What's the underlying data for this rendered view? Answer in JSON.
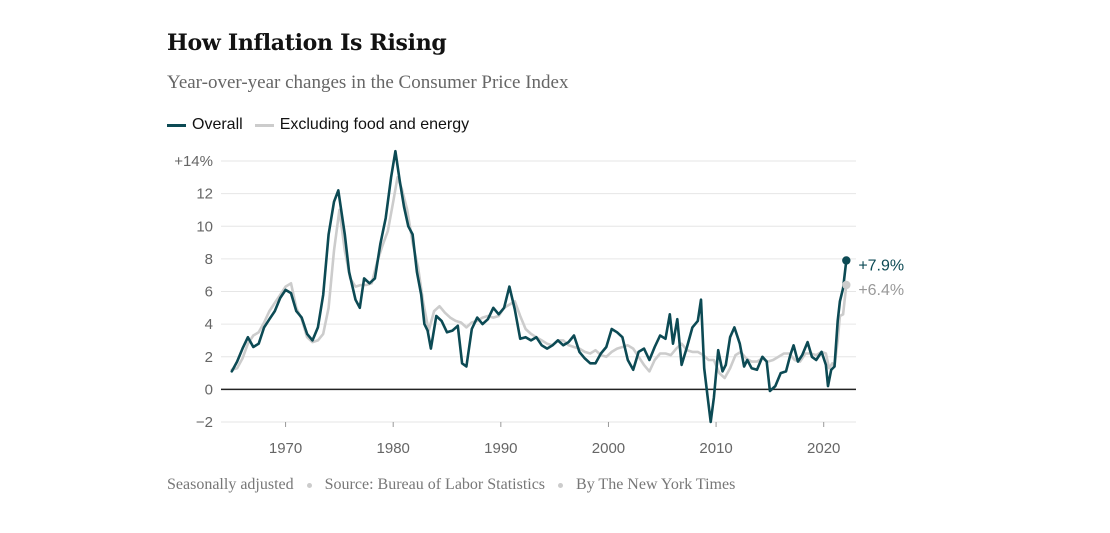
{
  "title": "How Inflation Is Rising",
  "subtitle": "Year-over-year changes in the Consumer Price Index",
  "legend": [
    {
      "label": "Overall",
      "color": "#0c4a54"
    },
    {
      "label": "Excluding food and energy",
      "color": "#cccccc"
    }
  ],
  "footer": {
    "note": "Seasonally adjusted",
    "source": "Source: Bureau of Labor Statistics",
    "byline": "By The New York Times"
  },
  "chart_data": {
    "type": "line",
    "xlabel": "",
    "ylabel": "",
    "xlim": [
      1964,
      2023
    ],
    "ylim": [
      -2,
      14
    ],
    "x_ticks": [
      1970,
      1980,
      1990,
      2000,
      2010,
      2020
    ],
    "y_ticks": [
      {
        "value": 14,
        "label": "+14%"
      },
      {
        "value": 12,
        "label": "12"
      },
      {
        "value": 10,
        "label": "10"
      },
      {
        "value": 8,
        "label": "8"
      },
      {
        "value": 6,
        "label": "6"
      },
      {
        "value": 4,
        "label": "4"
      },
      {
        "value": 2,
        "label": "2"
      },
      {
        "value": 0,
        "label": "0"
      },
      {
        "value": -2,
        "label": "−2"
      }
    ],
    "grid": true,
    "legend_position": "top-left",
    "series": [
      {
        "name": "Overall",
        "color": "#0c4a54",
        "end_label": "+7.9%",
        "points": [
          [
            1965.0,
            1.1
          ],
          [
            1965.5,
            1.7
          ],
          [
            1966.0,
            2.5
          ],
          [
            1966.5,
            3.2
          ],
          [
            1967.0,
            2.6
          ],
          [
            1967.5,
            2.8
          ],
          [
            1968.0,
            3.8
          ],
          [
            1968.5,
            4.3
          ],
          [
            1969.0,
            4.8
          ],
          [
            1969.5,
            5.6
          ],
          [
            1970.0,
            6.1
          ],
          [
            1970.5,
            5.9
          ],
          [
            1971.0,
            4.8
          ],
          [
            1971.5,
            4.4
          ],
          [
            1972.0,
            3.4
          ],
          [
            1972.5,
            3.0
          ],
          [
            1973.0,
            3.8
          ],
          [
            1973.5,
            5.8
          ],
          [
            1974.0,
            9.5
          ],
          [
            1974.5,
            11.5
          ],
          [
            1974.9,
            12.2
          ],
          [
            1975.5,
            9.5
          ],
          [
            1975.9,
            7.2
          ],
          [
            1976.5,
            5.5
          ],
          [
            1976.9,
            5.0
          ],
          [
            1977.3,
            6.8
          ],
          [
            1977.8,
            6.5
          ],
          [
            1978.3,
            6.8
          ],
          [
            1978.8,
            8.9
          ],
          [
            1979.3,
            10.5
          ],
          [
            1979.8,
            13.0
          ],
          [
            1980.2,
            14.6
          ],
          [
            1980.6,
            12.8
          ],
          [
            1981.0,
            11.2
          ],
          [
            1981.4,
            10.0
          ],
          [
            1981.8,
            9.5
          ],
          [
            1982.2,
            7.2
          ],
          [
            1982.6,
            5.8
          ],
          [
            1982.9,
            4.0
          ],
          [
            1983.2,
            3.6
          ],
          [
            1983.5,
            2.5
          ],
          [
            1984.0,
            4.5
          ],
          [
            1984.5,
            4.2
          ],
          [
            1985.0,
            3.5
          ],
          [
            1985.5,
            3.6
          ],
          [
            1986.0,
            3.9
          ],
          [
            1986.4,
            1.6
          ],
          [
            1986.8,
            1.4
          ],
          [
            1987.3,
            3.7
          ],
          [
            1987.8,
            4.4
          ],
          [
            1988.3,
            4.0
          ],
          [
            1988.8,
            4.3
          ],
          [
            1989.3,
            5.0
          ],
          [
            1989.8,
            4.6
          ],
          [
            1990.3,
            5.0
          ],
          [
            1990.8,
            6.3
          ],
          [
            1991.3,
            4.9
          ],
          [
            1991.8,
            3.1
          ],
          [
            1992.3,
            3.2
          ],
          [
            1992.8,
            3.0
          ],
          [
            1993.3,
            3.2
          ],
          [
            1993.8,
            2.7
          ],
          [
            1994.3,
            2.5
          ],
          [
            1994.8,
            2.7
          ],
          [
            1995.3,
            3.0
          ],
          [
            1995.8,
            2.7
          ],
          [
            1996.3,
            2.9
          ],
          [
            1996.8,
            3.3
          ],
          [
            1997.3,
            2.3
          ],
          [
            1997.8,
            1.9
          ],
          [
            1998.3,
            1.6
          ],
          [
            1998.8,
            1.6
          ],
          [
            1999.3,
            2.2
          ],
          [
            1999.8,
            2.6
          ],
          [
            2000.3,
            3.7
          ],
          [
            2000.8,
            3.5
          ],
          [
            2001.3,
            3.2
          ],
          [
            2001.8,
            1.8
          ],
          [
            2002.3,
            1.2
          ],
          [
            2002.8,
            2.3
          ],
          [
            2003.3,
            2.5
          ],
          [
            2003.8,
            1.8
          ],
          [
            2004.3,
            2.6
          ],
          [
            2004.8,
            3.3
          ],
          [
            2005.3,
            3.1
          ],
          [
            2005.7,
            4.6
          ],
          [
            2006.0,
            2.8
          ],
          [
            2006.4,
            4.3
          ],
          [
            2006.8,
            1.5
          ],
          [
            2007.3,
            2.6
          ],
          [
            2007.8,
            3.8
          ],
          [
            2008.3,
            4.2
          ],
          [
            2008.6,
            5.5
          ],
          [
            2008.9,
            1.3
          ],
          [
            2009.2,
            -0.4
          ],
          [
            2009.5,
            -2.0
          ],
          [
            2009.8,
            -0.5
          ],
          [
            2010.2,
            2.4
          ],
          [
            2010.6,
            1.1
          ],
          [
            2010.9,
            1.5
          ],
          [
            2011.3,
            3.2
          ],
          [
            2011.7,
            3.8
          ],
          [
            2012.2,
            2.8
          ],
          [
            2012.6,
            1.4
          ],
          [
            2012.9,
            1.8
          ],
          [
            2013.3,
            1.3
          ],
          [
            2013.8,
            1.2
          ],
          [
            2014.3,
            2.0
          ],
          [
            2014.7,
            1.7
          ],
          [
            2015.0,
            -0.1
          ],
          [
            2015.5,
            0.2
          ],
          [
            2016.0,
            1.0
          ],
          [
            2016.5,
            1.1
          ],
          [
            2016.9,
            2.1
          ],
          [
            2017.2,
            2.7
          ],
          [
            2017.6,
            1.7
          ],
          [
            2018.0,
            2.1
          ],
          [
            2018.5,
            2.9
          ],
          [
            2018.9,
            2.0
          ],
          [
            2019.3,
            1.8
          ],
          [
            2019.8,
            2.3
          ],
          [
            2020.2,
            1.5
          ],
          [
            2020.4,
            0.2
          ],
          [
            2020.7,
            1.2
          ],
          [
            2021.0,
            1.4
          ],
          [
            2021.3,
            4.2
          ],
          [
            2021.5,
            5.4
          ],
          [
            2021.8,
            6.2
          ],
          [
            2022.1,
            7.9
          ]
        ]
      },
      {
        "name": "Excluding food and energy",
        "color": "#cccccc",
        "end_label": "+6.4%",
        "points": [
          [
            1965.0,
            1.2
          ],
          [
            1965.5,
            1.3
          ],
          [
            1966.0,
            1.9
          ],
          [
            1966.5,
            2.8
          ],
          [
            1967.0,
            3.3
          ],
          [
            1967.5,
            3.5
          ],
          [
            1968.0,
            4.1
          ],
          [
            1968.5,
            4.8
          ],
          [
            1969.0,
            5.3
          ],
          [
            1969.5,
            5.8
          ],
          [
            1970.0,
            6.3
          ],
          [
            1970.5,
            6.5
          ],
          [
            1971.0,
            5.0
          ],
          [
            1971.5,
            4.3
          ],
          [
            1972.0,
            3.2
          ],
          [
            1972.5,
            2.9
          ],
          [
            1973.0,
            3.0
          ],
          [
            1973.5,
            3.4
          ],
          [
            1974.0,
            5.0
          ],
          [
            1974.5,
            8.5
          ],
          [
            1975.0,
            11.0
          ],
          [
            1975.5,
            8.5
          ],
          [
            1976.0,
            6.8
          ],
          [
            1976.5,
            6.3
          ],
          [
            1977.0,
            6.4
          ],
          [
            1977.5,
            6.4
          ],
          [
            1978.0,
            6.5
          ],
          [
            1978.5,
            7.8
          ],
          [
            1979.0,
            8.8
          ],
          [
            1979.5,
            9.7
          ],
          [
            1980.0,
            11.5
          ],
          [
            1980.4,
            13.0
          ],
          [
            1980.8,
            12.3
          ],
          [
            1981.3,
            11.0
          ],
          [
            1981.8,
            9.0
          ],
          [
            1982.3,
            7.5
          ],
          [
            1982.8,
            5.3
          ],
          [
            1983.3,
            3.6
          ],
          [
            1983.8,
            4.8
          ],
          [
            1984.3,
            5.1
          ],
          [
            1984.8,
            4.7
          ],
          [
            1985.3,
            4.4
          ],
          [
            1985.8,
            4.2
          ],
          [
            1986.3,
            4.1
          ],
          [
            1986.8,
            3.8
          ],
          [
            1987.3,
            4.1
          ],
          [
            1987.8,
            4.2
          ],
          [
            1988.3,
            4.4
          ],
          [
            1988.8,
            4.5
          ],
          [
            1989.3,
            4.4
          ],
          [
            1989.8,
            4.5
          ],
          [
            1990.3,
            5.0
          ],
          [
            1990.8,
            5.2
          ],
          [
            1991.3,
            5.4
          ],
          [
            1991.8,
            4.5
          ],
          [
            1992.3,
            3.7
          ],
          [
            1992.8,
            3.4
          ],
          [
            1993.3,
            3.2
          ],
          [
            1993.8,
            3.0
          ],
          [
            1994.3,
            2.8
          ],
          [
            1994.8,
            2.7
          ],
          [
            1995.3,
            3.0
          ],
          [
            1995.8,
            3.0
          ],
          [
            1996.3,
            2.7
          ],
          [
            1996.8,
            2.6
          ],
          [
            1997.3,
            2.5
          ],
          [
            1997.8,
            2.3
          ],
          [
            1998.3,
            2.2
          ],
          [
            1998.8,
            2.4
          ],
          [
            1999.3,
            2.1
          ],
          [
            1999.8,
            2.0
          ],
          [
            2000.3,
            2.3
          ],
          [
            2000.8,
            2.5
          ],
          [
            2001.3,
            2.6
          ],
          [
            2001.8,
            2.7
          ],
          [
            2002.3,
            2.5
          ],
          [
            2002.8,
            2.0
          ],
          [
            2003.3,
            1.5
          ],
          [
            2003.8,
            1.1
          ],
          [
            2004.3,
            1.8
          ],
          [
            2004.8,
            2.2
          ],
          [
            2005.3,
            2.2
          ],
          [
            2005.8,
            2.1
          ],
          [
            2006.3,
            2.5
          ],
          [
            2006.8,
            2.8
          ],
          [
            2007.3,
            2.4
          ],
          [
            2007.8,
            2.3
          ],
          [
            2008.3,
            2.3
          ],
          [
            2008.8,
            2.1
          ],
          [
            2009.3,
            1.8
          ],
          [
            2009.8,
            1.8
          ],
          [
            2010.3,
            1.0
          ],
          [
            2010.8,
            0.7
          ],
          [
            2011.3,
            1.3
          ],
          [
            2011.8,
            2.1
          ],
          [
            2012.3,
            2.3
          ],
          [
            2012.8,
            1.9
          ],
          [
            2013.3,
            1.7
          ],
          [
            2013.8,
            1.7
          ],
          [
            2014.3,
            1.9
          ],
          [
            2014.8,
            1.7
          ],
          [
            2015.3,
            1.8
          ],
          [
            2015.8,
            2.0
          ],
          [
            2016.3,
            2.2
          ],
          [
            2016.8,
            2.2
          ],
          [
            2017.3,
            1.8
          ],
          [
            2017.8,
            1.7
          ],
          [
            2018.3,
            2.2
          ],
          [
            2018.8,
            2.2
          ],
          [
            2019.3,
            2.1
          ],
          [
            2019.8,
            2.3
          ],
          [
            2020.2,
            2.2
          ],
          [
            2020.5,
            1.3
          ],
          [
            2020.8,
            1.6
          ],
          [
            2021.0,
            1.4
          ],
          [
            2021.3,
            3.0
          ],
          [
            2021.5,
            4.5
          ],
          [
            2021.8,
            4.6
          ],
          [
            2022.1,
            6.4
          ]
        ]
      }
    ]
  }
}
